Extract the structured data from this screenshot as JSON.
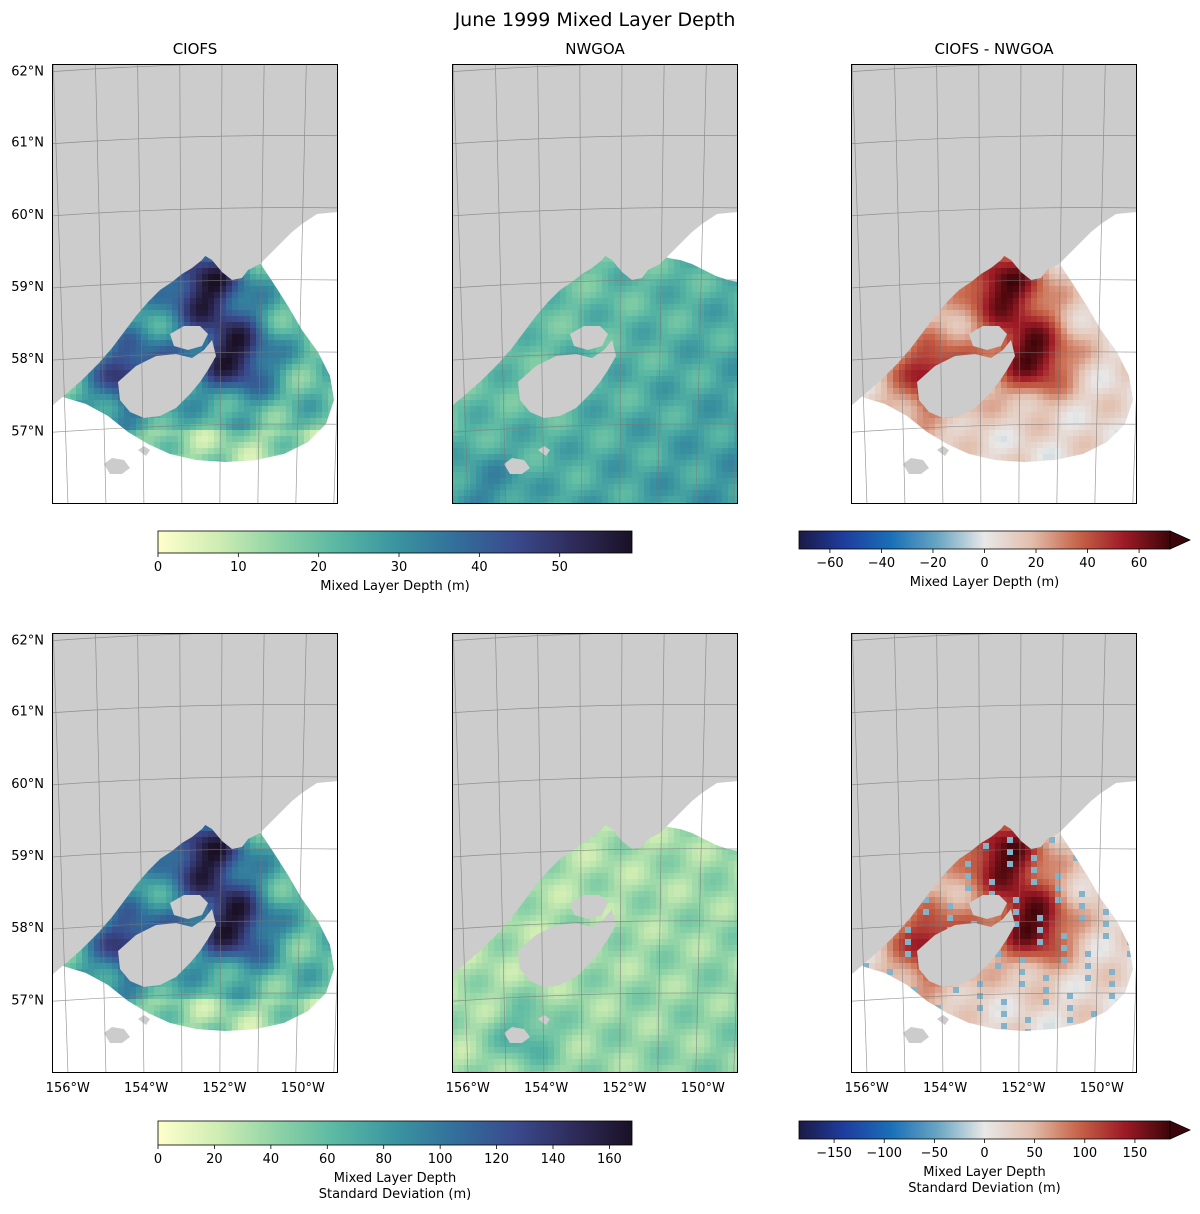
{
  "figure": {
    "title": "June 1999 Mixed Layer Depth"
  },
  "colors": {
    "land": "#cccccc",
    "gridline": "#7a7a7a",
    "frame": "#000000",
    "sequential_cmap": [
      "#ffffcc",
      "#cfedb3",
      "#8fd3a6",
      "#5ab8a3",
      "#3a95a0",
      "#32709b",
      "#3a4b8e",
      "#2f2c5c",
      "#1a1126"
    ],
    "diverging_cmap": [
      "#1b1a45",
      "#1f3ea1",
      "#1a70b8",
      "#6aa6c3",
      "#e8e8e8",
      "#e2bfae",
      "#c7664a",
      "#9e1b26",
      "#3d0509"
    ]
  },
  "chart_data": [
    {
      "type": "heatmap",
      "panel": "top-left",
      "title": "CIOFS",
      "variable": "Mixed Layer Depth (m)",
      "lat_ticks": [
        "62°N",
        "61°N",
        "60°N",
        "59°N",
        "58°N",
        "57°N"
      ],
      "lon_ticks": [],
      "lon_range": [
        -156,
        -149
      ],
      "lat_range": [
        56,
        62
      ],
      "colorbar": "sequential-top",
      "field_pattern": "ciofs-mean"
    },
    {
      "type": "heatmap",
      "panel": "top-center",
      "title": "NWGOA",
      "variable": "Mixed Layer Depth (m)",
      "lat_ticks": [],
      "lon_ticks": [],
      "lon_range": [
        -156,
        -149
      ],
      "lat_range": [
        56,
        62
      ],
      "colorbar": "sequential-top",
      "field_pattern": "nwgoa-mean"
    },
    {
      "type": "heatmap",
      "panel": "top-right",
      "title": "CIOFS - NWGOA",
      "variable": "Mixed Layer Depth (m)",
      "lat_ticks": [],
      "lon_ticks": [],
      "lon_range": [
        -156,
        -149
      ],
      "lat_range": [
        56,
        62
      ],
      "colorbar": "diverging-top",
      "field_pattern": "diff-mean"
    },
    {
      "type": "heatmap",
      "panel": "bottom-left",
      "title": "",
      "variable": "Mixed Layer Depth Standard Deviation (m)",
      "lat_ticks": [
        "62°N",
        "61°N",
        "60°N",
        "59°N",
        "58°N",
        "57°N"
      ],
      "lon_ticks": [
        "156°W",
        "154°W",
        "152°W",
        "150°W"
      ],
      "lon_range": [
        -156,
        -149
      ],
      "lat_range": [
        56,
        62
      ],
      "colorbar": "sequential-bottom",
      "field_pattern": "ciofs-std"
    },
    {
      "type": "heatmap",
      "panel": "bottom-center",
      "title": "",
      "variable": "Mixed Layer Depth Standard Deviation (m)",
      "lat_ticks": [],
      "lon_ticks": [
        "156°W",
        "154°W",
        "152°W",
        "150°W"
      ],
      "lon_range": [
        -156,
        -149
      ],
      "lat_range": [
        56,
        62
      ],
      "colorbar": "sequential-bottom",
      "field_pattern": "nwgoa-std"
    },
    {
      "type": "heatmap",
      "panel": "bottom-right",
      "title": "",
      "variable": "Mixed Layer Depth Standard Deviation (m)",
      "lat_ticks": [],
      "lon_ticks": [
        "156°W",
        "154°W",
        "152°W",
        "150°W"
      ],
      "lon_range": [
        -156,
        -149
      ],
      "lat_range": [
        56,
        62
      ],
      "colorbar": "diverging-bottom",
      "field_pattern": "diff-std"
    }
  ],
  "colorbars": [
    {
      "id": "sequential-top",
      "cmap": "sequential",
      "range": [
        0,
        59
      ],
      "ticks": [
        0,
        10,
        20,
        30,
        40,
        50
      ],
      "tick_labels": [
        "0",
        "10",
        "20",
        "30",
        "40",
        "50"
      ],
      "label": [
        "Mixed Layer Depth (m)"
      ],
      "extend": "neither"
    },
    {
      "id": "diverging-top",
      "cmap": "diverging",
      "range": [
        -72,
        72
      ],
      "ticks": [
        -60,
        -40,
        -20,
        0,
        20,
        40,
        60
      ],
      "tick_labels": [
        "−60",
        "−40",
        "−20",
        "0",
        "20",
        "40",
        "60"
      ],
      "label": [
        "Mixed Layer Depth (m)"
      ],
      "extend": "max"
    },
    {
      "id": "sequential-bottom",
      "cmap": "sequential",
      "range": [
        0,
        168
      ],
      "ticks": [
        0,
        20,
        40,
        60,
        80,
        100,
        120,
        140,
        160
      ],
      "tick_labels": [
        "0",
        "20",
        "40",
        "60",
        "80",
        "100",
        "120",
        "140",
        "160"
      ],
      "label": [
        "Mixed Layer Depth",
        "Standard Deviation (m)"
      ],
      "extend": "neither"
    },
    {
      "id": "diverging-bottom",
      "cmap": "diverging",
      "range": [
        -185,
        185
      ],
      "ticks": [
        -150,
        -100,
        -50,
        0,
        50,
        100,
        150
      ],
      "tick_labels": [
        "−150",
        "−100",
        "−50",
        "0",
        "50",
        "100",
        "150"
      ],
      "label": [
        "Mixed Layer Depth",
        "Standard Deviation (m)"
      ],
      "extend": "max"
    }
  ]
}
